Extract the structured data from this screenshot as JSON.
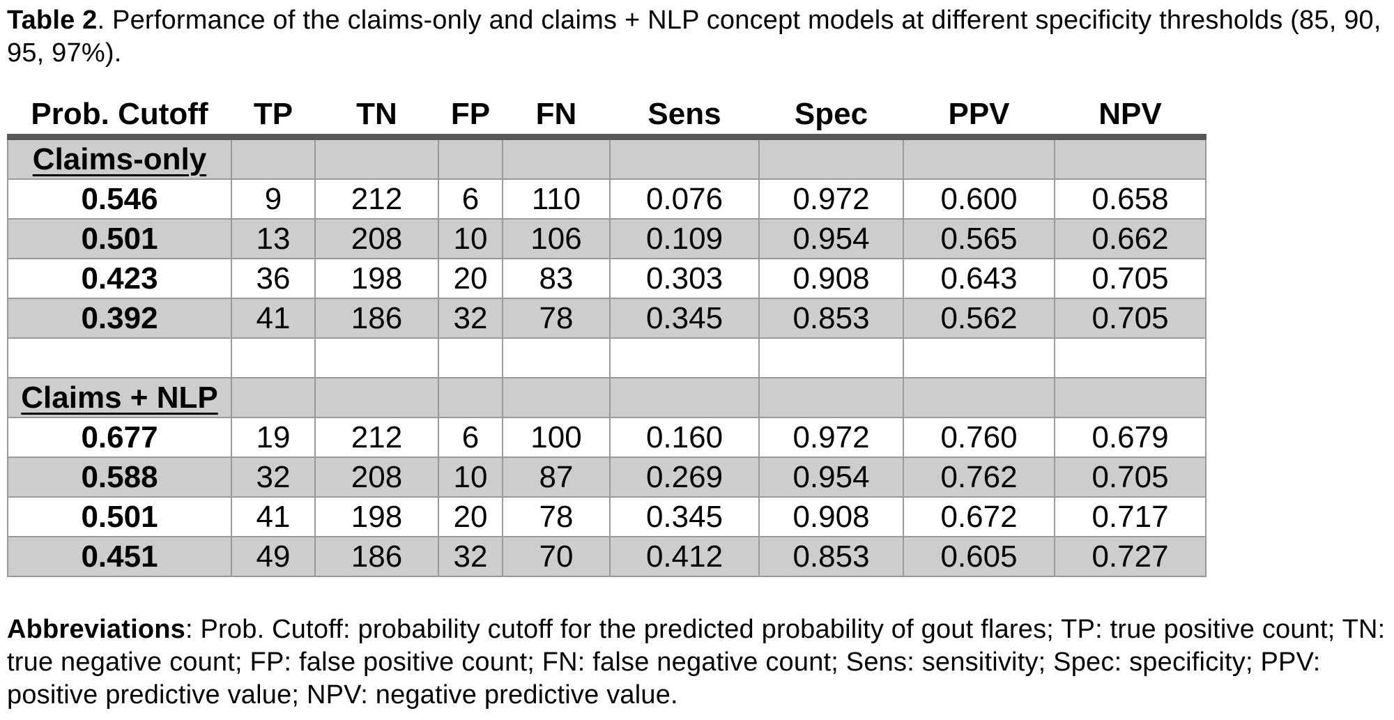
{
  "title": {
    "bold": "Table 2",
    "rest": ". Performance of the claims-only and claims + NLP concept models at different specificity thresholds (85, 90, 95, 97%)."
  },
  "table": {
    "columns": [
      "Prob. Cutoff",
      "TP",
      "TN",
      "FP",
      "FN",
      "Sens",
      "Spec",
      "PPV",
      "NPV"
    ],
    "sections": [
      {
        "label": "Claims-only",
        "rows": [
          [
            "0.546",
            "9",
            "212",
            "6",
            "110",
            "0.076",
            "0.972",
            "0.600",
            "0.658"
          ],
          [
            "0.501",
            "13",
            "208",
            "10",
            "106",
            "0.109",
            "0.954",
            "0.565",
            "0.662"
          ],
          [
            "0.423",
            "36",
            "198",
            "20",
            "83",
            "0.303",
            "0.908",
            "0.643",
            "0.705"
          ],
          [
            "0.392",
            "41",
            "186",
            "32",
            "78",
            "0.345",
            "0.853",
            "0.562",
            "0.705"
          ]
        ]
      },
      {
        "label": "Claims + NLP",
        "rows": [
          [
            "0.677",
            "19",
            "212",
            "6",
            "100",
            "0.160",
            "0.972",
            "0.760",
            "0.679"
          ],
          [
            "0.588",
            "32",
            "208",
            "10",
            "87",
            "0.269",
            "0.954",
            "0.762",
            "0.705"
          ],
          [
            "0.501",
            "41",
            "198",
            "20",
            "78",
            "0.345",
            "0.908",
            "0.672",
            "0.717"
          ],
          [
            "0.451",
            "49",
            "186",
            "32",
            "70",
            "0.412",
            "0.853",
            "0.605",
            "0.727"
          ]
        ]
      }
    ]
  },
  "abbreviations": {
    "bold": "Abbreviations",
    "rest": ": Prob. Cutoff: probability cutoff for the predicted probability of gout flares; TP: true positive count; TN: true negative count; FP: false positive count; FN: false negative count; Sens: sensitivity; Spec: specificity; PPV: positive predictive value; NPV: negative predictive value."
  },
  "colors": {
    "row_shade": "#cdcdcd",
    "header_rule": "#58585a",
    "grid": "#999999"
  }
}
